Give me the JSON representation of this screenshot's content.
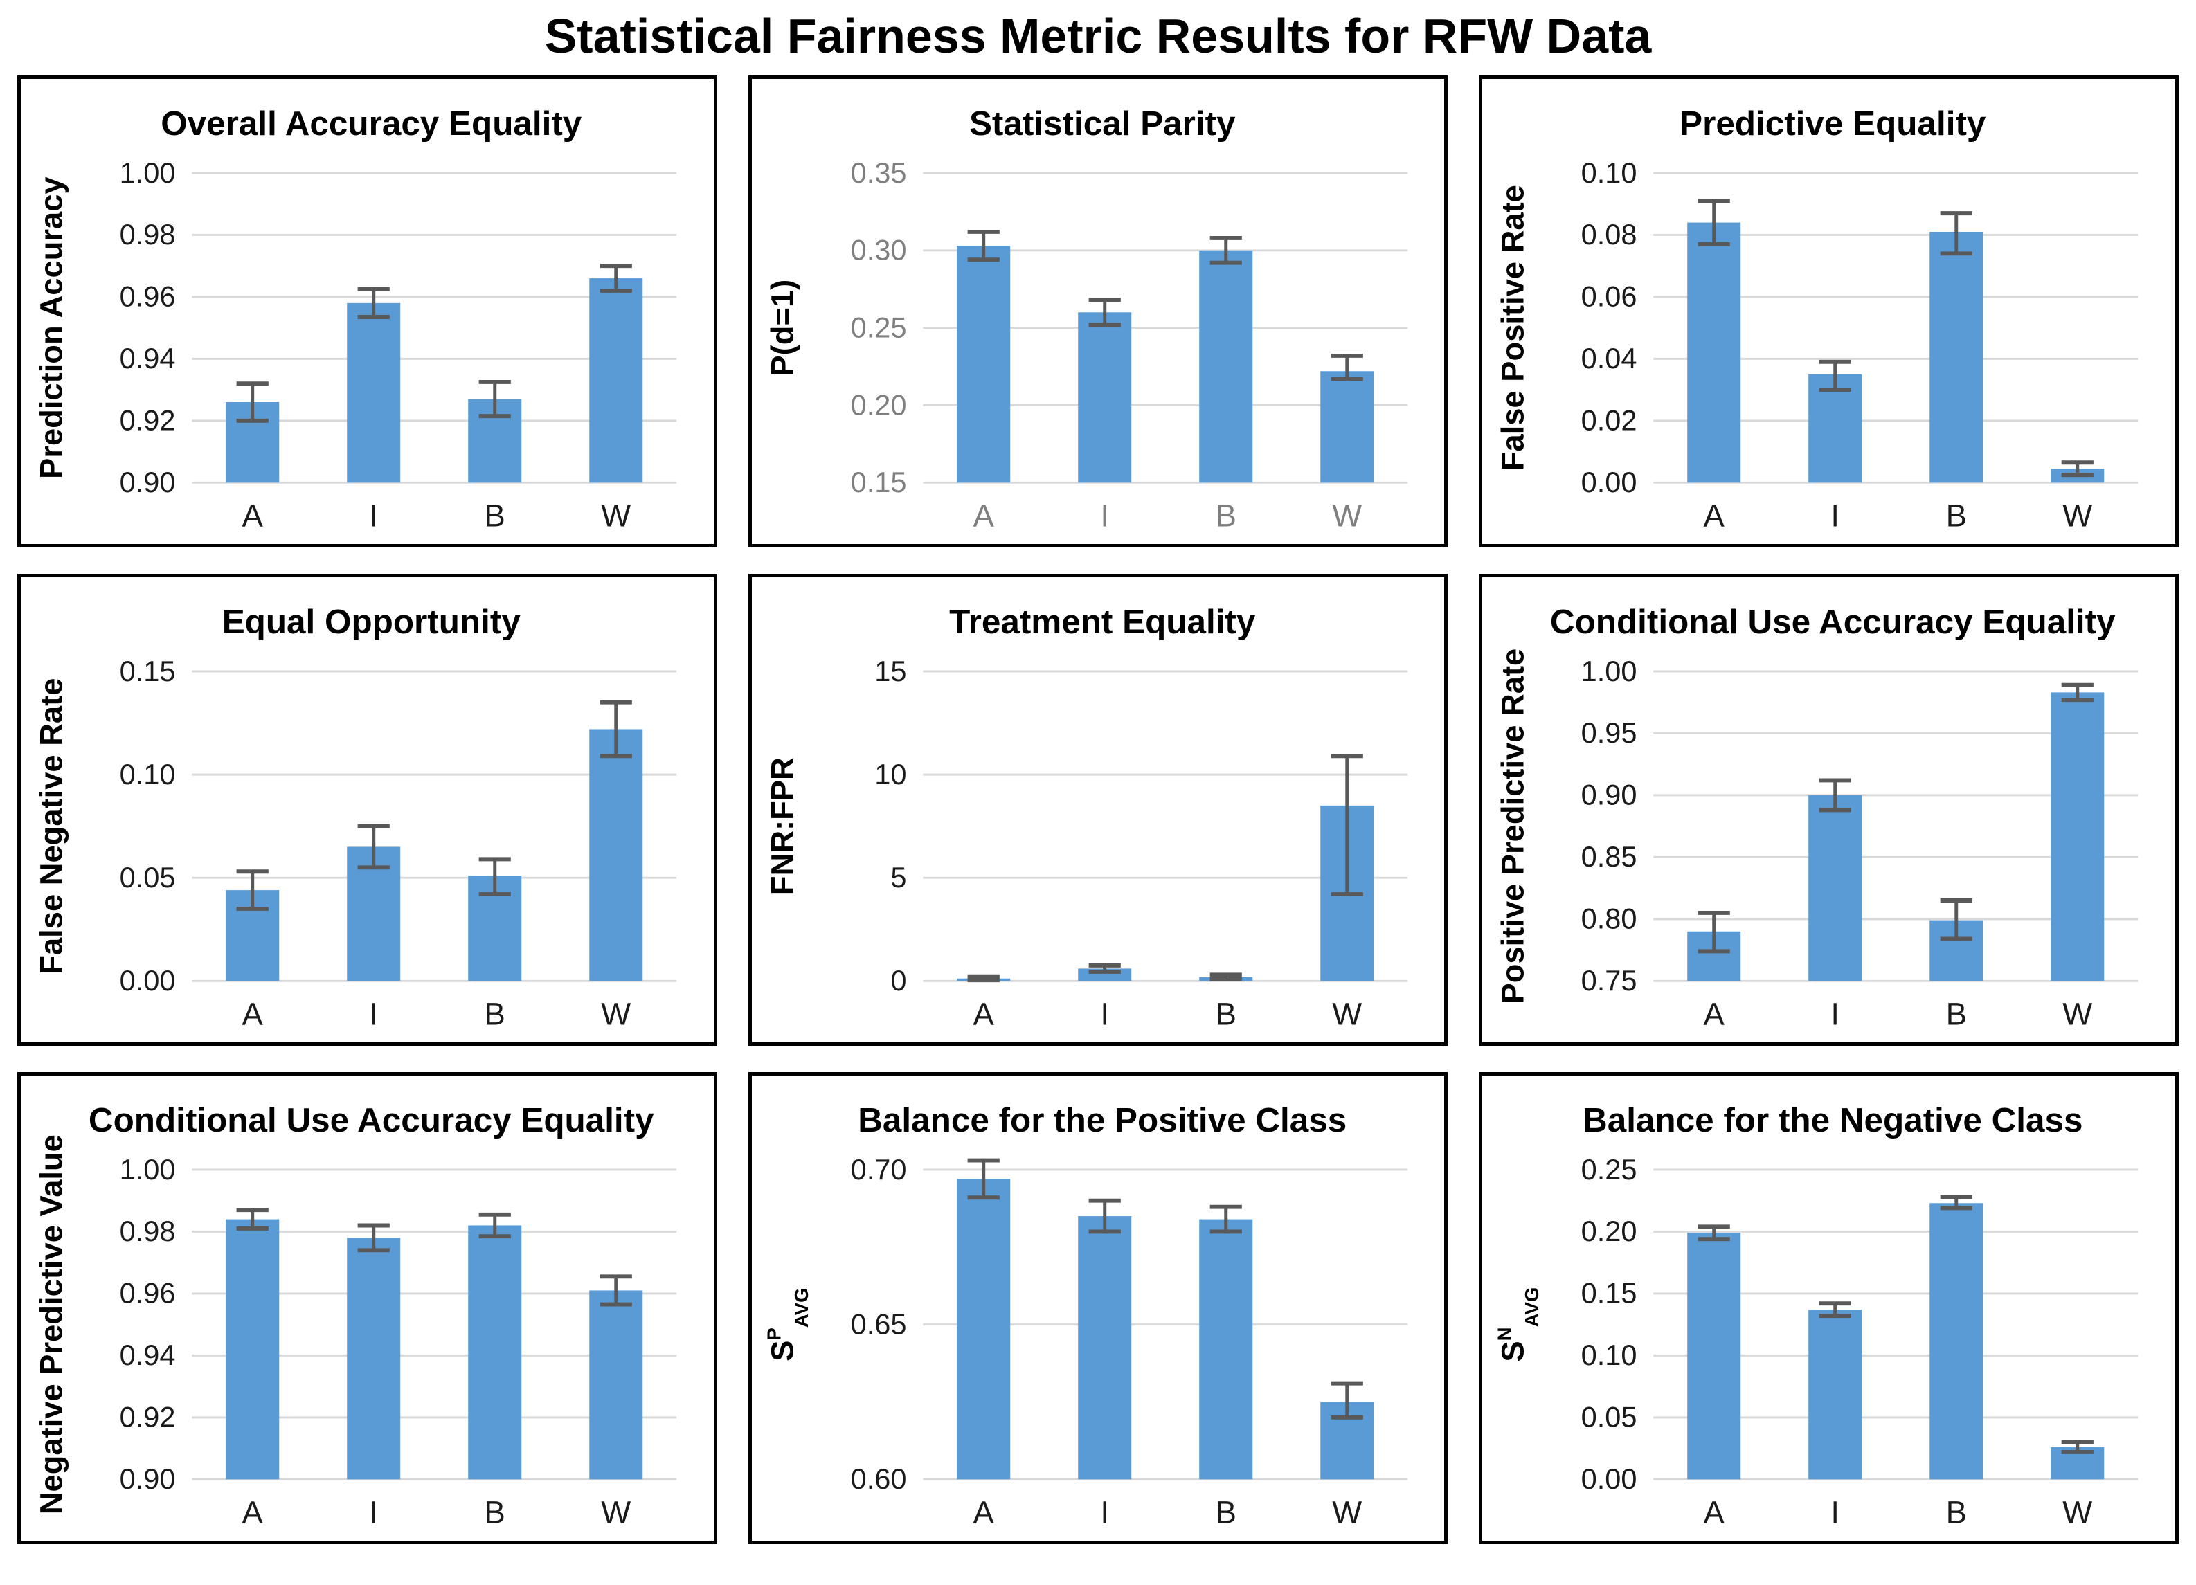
{
  "page_title": "Statistical Fairness Metric Results for RFW Data",
  "colors": {
    "bar": "#5B9BD5",
    "error_bar": "#595959",
    "gridline": "#D9D9D9",
    "axis_text": "#1a1a1a",
    "gray_axis_text": "#7f7f7f",
    "title_text": "#000000",
    "panel_border": "#000000",
    "background": "#FFFFFF"
  },
  "chart_data": [
    {
      "type": "bar",
      "title": "Overall Accuracy Equality",
      "ylabel": "Prediction Accuracy",
      "categories": [
        "A",
        "I",
        "B",
        "W"
      ],
      "values": [
        0.926,
        0.958,
        0.927,
        0.966
      ],
      "err_up": [
        0.006,
        0.0045,
        0.0055,
        0.004
      ],
      "err_down": [
        0.006,
        0.0045,
        0.0055,
        0.004
      ],
      "ymin": 0.9,
      "ymax": 1.0,
      "tick_values": [
        0.9,
        0.92,
        0.94,
        0.96,
        0.98,
        1.0
      ],
      "tick_labels": [
        "0.90",
        "0.92",
        "0.94",
        "0.96",
        "0.98",
        "1.00"
      ],
      "grid": true,
      "legend": null,
      "axis_text_gray": false
    },
    {
      "type": "bar",
      "title": "Statistical Parity",
      "ylabel": "P(d=1)",
      "categories": [
        "A",
        "I",
        "B",
        "W"
      ],
      "values": [
        0.303,
        0.26,
        0.3,
        0.222
      ],
      "err_up": [
        0.009,
        0.008,
        0.008,
        0.01
      ],
      "err_down": [
        0.009,
        0.008,
        0.008,
        0.005
      ],
      "ymin": 0.15,
      "ymax": 0.35,
      "tick_values": [
        0.15,
        0.2,
        0.25,
        0.3,
        0.35
      ],
      "tick_labels": [
        "0.15",
        "0.20",
        "0.25",
        "0.30",
        "0.35"
      ],
      "grid": true,
      "legend": null,
      "axis_text_gray": true
    },
    {
      "type": "bar",
      "title": "Predictive Equality",
      "ylabel": "False Positive Rate",
      "categories": [
        "A",
        "I",
        "B",
        "W"
      ],
      "values": [
        0.084,
        0.035,
        0.081,
        0.0045
      ],
      "err_up": [
        0.007,
        0.004,
        0.006,
        0.002
      ],
      "err_down": [
        0.007,
        0.005,
        0.007,
        0.002
      ],
      "ymin": 0.0,
      "ymax": 0.1,
      "tick_values": [
        0.0,
        0.02,
        0.04,
        0.06,
        0.08,
        0.1
      ],
      "tick_labels": [
        "0.00",
        "0.02",
        "0.04",
        "0.06",
        "0.08",
        "0.10"
      ],
      "grid": true,
      "legend": null,
      "axis_text_gray": false
    },
    {
      "type": "bar",
      "title": "Equal Opportunity",
      "ylabel": "False Negative Rate",
      "categories": [
        "A",
        "I",
        "B",
        "W"
      ],
      "values": [
        0.044,
        0.065,
        0.051,
        0.122
      ],
      "err_up": [
        0.009,
        0.01,
        0.008,
        0.013
      ],
      "err_down": [
        0.009,
        0.01,
        0.009,
        0.013
      ],
      "ymin": 0.0,
      "ymax": 0.15,
      "tick_values": [
        0.0,
        0.05,
        0.1,
        0.15
      ],
      "tick_labels": [
        "0.00",
        "0.05",
        "0.10",
        "0.15"
      ],
      "grid": true,
      "legend": null,
      "axis_text_gray": false
    },
    {
      "type": "bar",
      "title": "Treatment Equality",
      "ylabel": "FNR:FPR",
      "categories": [
        "A",
        "I",
        "B",
        "W"
      ],
      "values": [
        0.12,
        0.6,
        0.18,
        8.5
      ],
      "err_up": [
        0.1,
        0.15,
        0.12,
        2.4
      ],
      "err_down": [
        0.08,
        0.15,
        0.1,
        4.3
      ],
      "ymin": 0,
      "ymax": 15,
      "tick_values": [
        0,
        5,
        10,
        15
      ],
      "tick_labels": [
        "0",
        "5",
        "10",
        "15"
      ],
      "grid": true,
      "legend": null,
      "axis_text_gray": false
    },
    {
      "type": "bar",
      "title": "Conditional Use Accuracy Equality",
      "ylabel": "Positive Predictive Rate",
      "categories": [
        "A",
        "I",
        "B",
        "W"
      ],
      "values": [
        0.79,
        0.9,
        0.799,
        0.983
      ],
      "err_up": [
        0.015,
        0.012,
        0.016,
        0.006
      ],
      "err_down": [
        0.016,
        0.012,
        0.015,
        0.006
      ],
      "ymin": 0.75,
      "ymax": 1.0,
      "tick_values": [
        0.75,
        0.8,
        0.85,
        0.9,
        0.95,
        1.0
      ],
      "tick_labels": [
        "0.75",
        "0.80",
        "0.85",
        "0.90",
        "0.95",
        "1.00"
      ],
      "grid": true,
      "legend": null,
      "axis_text_gray": false
    },
    {
      "type": "bar",
      "title": "Conditional Use Accuracy Equality",
      "ylabel": "Negative Predictive Value",
      "categories": [
        "A",
        "I",
        "B",
        "W"
      ],
      "values": [
        0.984,
        0.978,
        0.982,
        0.961
      ],
      "err_up": [
        0.003,
        0.004,
        0.0035,
        0.0045
      ],
      "err_down": [
        0.003,
        0.004,
        0.0035,
        0.0045
      ],
      "ymin": 0.9,
      "ymax": 1.0,
      "tick_values": [
        0.9,
        0.92,
        0.94,
        0.96,
        0.98,
        1.0
      ],
      "tick_labels": [
        "0.90",
        "0.92",
        "0.94",
        "0.96",
        "0.98",
        "1.00"
      ],
      "grid": true,
      "legend": null,
      "axis_text_gray": false
    },
    {
      "type": "bar",
      "title": "Balance for the Positive Class",
      "ylabel": "S^P_AVG",
      "categories": [
        "A",
        "I",
        "B",
        "W"
      ],
      "values": [
        0.697,
        0.685,
        0.684,
        0.625
      ],
      "err_up": [
        0.006,
        0.005,
        0.004,
        0.006
      ],
      "err_down": [
        0.006,
        0.005,
        0.004,
        0.005
      ],
      "ymin": 0.6,
      "ymax": 0.7,
      "tick_values": [
        0.6,
        0.65,
        0.7
      ],
      "tick_labels": [
        "0.60",
        "0.65",
        "0.70"
      ],
      "grid": true,
      "legend": null,
      "axis_text_gray": false
    },
    {
      "type": "bar",
      "title": "Balance for the Negative Class",
      "ylabel": "S^N_AVG",
      "categories": [
        "A",
        "I",
        "B",
        "W"
      ],
      "values": [
        0.199,
        0.137,
        0.223,
        0.026
      ],
      "err_up": [
        0.005,
        0.005,
        0.005,
        0.004
      ],
      "err_down": [
        0.005,
        0.005,
        0.004,
        0.004
      ],
      "ymin": 0.0,
      "ymax": 0.25,
      "tick_values": [
        0.0,
        0.05,
        0.1,
        0.15,
        0.2,
        0.25
      ],
      "tick_labels": [
        "0.00",
        "0.05",
        "0.10",
        "0.15",
        "0.20",
        "0.25"
      ],
      "grid": true,
      "legend": null,
      "axis_text_gray": false
    }
  ]
}
